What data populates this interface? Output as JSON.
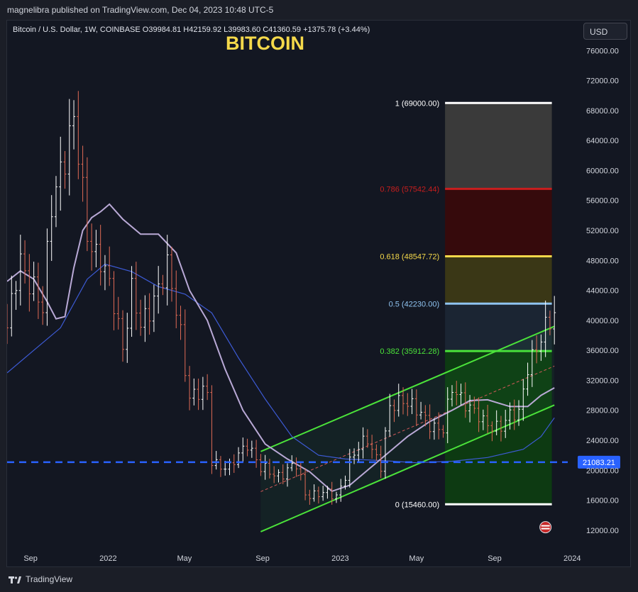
{
  "publisher_line": "magnelibra published on TradingView.com, Dec 04, 2023 10:48 UTC-5",
  "legend": "Bitcoin / U.S. Dollar, 1W, COINBASE  O39984.81  H42159.92  L39983.60  C41360.59  +1375.78 (+3.44%)",
  "currency_button": "USD",
  "title": "BITCOIN",
  "footer_brand": "TradingView",
  "colors": {
    "background": "#131722",
    "candle_up": "#ffffff",
    "candle_down": "#e06a55",
    "channel": "#4be33a",
    "support_line": "#2962ff",
    "fib_1": "#ffffff",
    "fib_0786": "#c81e1e",
    "fib_0618": "#f5d94a",
    "fib_05": "#8fc3f0",
    "fib_0382": "#4be33a",
    "fib_0": "#ffffff"
  },
  "chart_data": {
    "type": "candlestick",
    "title": "BITCOIN",
    "x_range": [
      "2021-07-26",
      "2023-12-25"
    ],
    "y_range": [
      10000,
      80000
    ],
    "y_ticks": [
      "76000.00",
      "72000.00",
      "68000.00",
      "64000.00",
      "60000.00",
      "56000.00",
      "52000.00",
      "48000.00",
      "44000.00",
      "40000.00",
      "36000.00",
      "32000.00",
      "28000.00",
      "24000.00",
      "20000.00",
      "16000.00",
      "12000.00"
    ],
    "x_ticks": [
      {
        "label": "Sep",
        "date": "2021-09-01"
      },
      {
        "label": "2022",
        "date": "2022-01-01"
      },
      {
        "label": "May",
        "date": "2022-05-01"
      },
      {
        "label": "Sep",
        "date": "2022-09-01"
      },
      {
        "label": "2023",
        "date": "2023-01-01"
      },
      {
        "label": "May",
        "date": "2023-05-01"
      },
      {
        "label": "Sep",
        "date": "2023-09-01"
      },
      {
        "label": "2024",
        "date": "2024-01-01"
      }
    ],
    "horizontal_line": {
      "price": 21083.21,
      "label": "21083.21",
      "style": "dashed"
    },
    "fibonacci": {
      "x_start": "2023-06-15",
      "x_end": "2023-11-30",
      "levels": [
        {
          "label": "1 (69000.00)",
          "price": 69000.0,
          "color": "#ffffff"
        },
        {
          "label": "0.786 (57542.44)",
          "price": 57542.44,
          "color": "#c81e1e"
        },
        {
          "label": "0.618 (48547.72)",
          "price": 48547.72,
          "color": "#f5d94a"
        },
        {
          "label": "0.5 (42230.00)",
          "price": 42230.0,
          "color": "#8fc3f0"
        },
        {
          "label": "0.382 (35912.28)",
          "price": 35912.28,
          "color": "#4be33a"
        },
        {
          "label": "0 (15460.00)",
          "price": 15460.0,
          "color": "#ffffff"
        }
      ]
    },
    "channel": {
      "upper": [
        {
          "date": "2022-08-29",
          "price": 22500
        },
        {
          "date": "2023-12-04",
          "price": 39200
        }
      ],
      "lower": [
        {
          "date": "2022-08-29",
          "price": 11800
        },
        {
          "date": "2023-12-04",
          "price": 28700
        }
      ],
      "middle": [
        {
          "date": "2022-08-29",
          "price": 17150
        },
        {
          "date": "2023-12-04",
          "price": 33900
        }
      ]
    },
    "ma_fast": [
      {
        "date": "2021-07-26",
        "price": 45200
      },
      {
        "date": "2021-08-16",
        "price": 46600
      },
      {
        "date": "2021-09-06",
        "price": 45500
      },
      {
        "date": "2021-09-27",
        "price": 42500
      },
      {
        "date": "2021-10-11",
        "price": 40200
      },
      {
        "date": "2021-10-25",
        "price": 40500
      },
      {
        "date": "2021-11-08",
        "price": 47000
      },
      {
        "date": "2021-11-22",
        "price": 52000
      },
      {
        "date": "2021-12-06",
        "price": 53700
      },
      {
        "date": "2021-12-20",
        "price": 54500
      },
      {
        "date": "2022-01-03",
        "price": 55500
      },
      {
        "date": "2022-01-24",
        "price": 53500
      },
      {
        "date": "2022-02-21",
        "price": 51500
      },
      {
        "date": "2022-03-21",
        "price": 51500
      },
      {
        "date": "2022-04-18",
        "price": 49000
      },
      {
        "date": "2022-05-09",
        "price": 44000
      },
      {
        "date": "2022-06-06",
        "price": 40000
      },
      {
        "date": "2022-07-04",
        "price": 33500
      },
      {
        "date": "2022-08-01",
        "price": 28000
      },
      {
        "date": "2022-09-05",
        "price": 23500
      },
      {
        "date": "2022-10-10",
        "price": 21500
      },
      {
        "date": "2022-11-14",
        "price": 19800
      },
      {
        "date": "2022-12-19",
        "price": 17200
      },
      {
        "date": "2023-01-16",
        "price": 18000
      },
      {
        "date": "2023-02-20",
        "price": 20500
      },
      {
        "date": "2023-03-20",
        "price": 22500
      },
      {
        "date": "2023-04-17",
        "price": 24500
      },
      {
        "date": "2023-05-22",
        "price": 26500
      },
      {
        "date": "2023-06-26",
        "price": 28000
      },
      {
        "date": "2023-07-24",
        "price": 29300
      },
      {
        "date": "2023-08-21",
        "price": 29400
      },
      {
        "date": "2023-09-25",
        "price": 28500
      },
      {
        "date": "2023-10-23",
        "price": 28500
      },
      {
        "date": "2023-11-13",
        "price": 30000
      },
      {
        "date": "2023-12-04",
        "price": 31000
      }
    ],
    "ma_slow": [
      {
        "date": "2021-07-26",
        "price": 33000
      },
      {
        "date": "2021-09-06",
        "price": 36000
      },
      {
        "date": "2021-10-18",
        "price": 39000
      },
      {
        "date": "2021-11-29",
        "price": 45500
      },
      {
        "date": "2021-12-27",
        "price": 47500
      },
      {
        "date": "2022-02-07",
        "price": 46500
      },
      {
        "date": "2022-03-21",
        "price": 44500
      },
      {
        "date": "2022-05-02",
        "price": 43500
      },
      {
        "date": "2022-06-13",
        "price": 41000
      },
      {
        "date": "2022-07-25",
        "price": 35000
      },
      {
        "date": "2022-09-05",
        "price": 29500
      },
      {
        "date": "2022-10-17",
        "price": 24500
      },
      {
        "date": "2022-11-28",
        "price": 22000
      },
      {
        "date": "2023-01-09",
        "price": 21500
      },
      {
        "date": "2023-03-06",
        "price": 21300
      },
      {
        "date": "2023-05-01",
        "price": 21000
      },
      {
        "date": "2023-06-26",
        "price": 21200
      },
      {
        "date": "2023-08-21",
        "price": 21700
      },
      {
        "date": "2023-10-16",
        "price": 22800
      },
      {
        "date": "2023-11-13",
        "price": 24500
      },
      {
        "date": "2023-12-04",
        "price": 27000
      }
    ]
  }
}
